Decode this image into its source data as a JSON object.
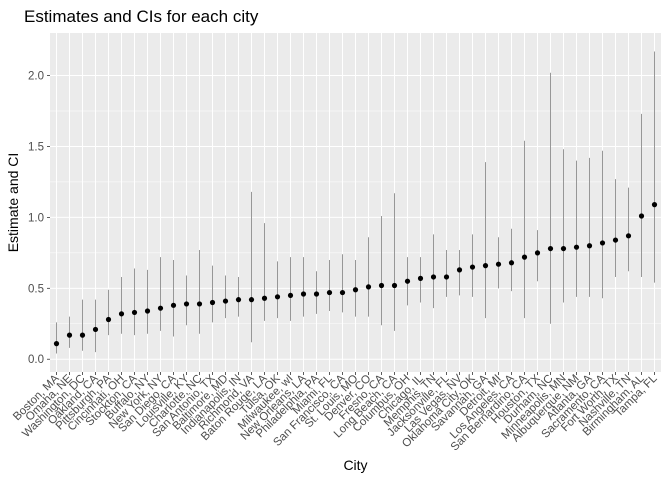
{
  "chart_data": {
    "type": "scatter",
    "title": "Estimates and CIs for each city",
    "xlabel": "City",
    "ylabel": "Estimate and CI",
    "ylim": [
      -0.09,
      2.3
    ],
    "yticks": [
      "0.0",
      "0.5",
      "1.0",
      "1.5",
      "2.0"
    ],
    "grid": true,
    "legend": "none",
    "colors": {
      "panel": "#ebebeb",
      "grid_major": "#ffffff",
      "point": "#000000",
      "errorbar": "#8c8c8c",
      "text": "#4d4d4d"
    },
    "categories": [
      "Boston, MA",
      "Omaha, NE",
      "Washington, DC",
      "Oakland, CA",
      "Pittsburgh, PA",
      "Cincinnati, OH",
      "Stockton, CA",
      "Buffalo, NY",
      "New York, NY",
      "San Diego, CA",
      "Louisville, KY",
      "Charlotte, NC",
      "San Antonio, TX",
      "Baltimore, MD",
      "Indianapolis, IN",
      "Richmond, VA",
      "Baton Rouge, LA",
      "Tulsa, OK",
      "Milwaukee, wI",
      "New Orleans, LA",
      "Philadelphia, PA",
      "Miami, FL",
      "San Francisco, CA",
      "St. Louis, MO",
      "Denver, CO",
      "Fresno, CA",
      "Long Beach, CA",
      "Columbus, OH",
      "Chicago, IL",
      "Memphis, TN",
      "Jacksonville, FL",
      "Las Vegas, NV",
      "Oklahoma City, OK",
      "Savannah, GA",
      "Detroit, MI",
      "Los Angeles, CA",
      "San Bernardino, CA",
      "Houston, TX",
      "Durham, NC",
      "Minneapolis, MN",
      "Albuquerque, NM",
      "Atlanta, GA",
      "Sacramento, CA",
      "Fort Worth, TX",
      "Nashville, TN",
      "Birmingham, AL",
      "Tampa, FL"
    ],
    "estimate": [
      0.11,
      0.17,
      0.17,
      0.21,
      0.28,
      0.32,
      0.33,
      0.34,
      0.36,
      0.38,
      0.39,
      0.39,
      0.4,
      0.41,
      0.42,
      0.42,
      0.43,
      0.44,
      0.45,
      0.46,
      0.46,
      0.47,
      0.47,
      0.49,
      0.51,
      0.52,
      0.52,
      0.55,
      0.57,
      0.58,
      0.58,
      0.63,
      0.65,
      0.66,
      0.67,
      0.68,
      0.72,
      0.75,
      0.78,
      0.78,
      0.79,
      0.8,
      0.82,
      0.84,
      0.87,
      1.01,
      1.09
    ],
    "ci_lower": [
      0.04,
      0.08,
      0.06,
      0.05,
      0.17,
      0.18,
      0.17,
      0.18,
      0.2,
      0.16,
      0.24,
      0.18,
      0.26,
      0.29,
      0.3,
      0.12,
      0.27,
      0.29,
      0.27,
      0.3,
      0.32,
      0.34,
      0.33,
      0.3,
      0.3,
      0.24,
      0.2,
      0.38,
      0.4,
      0.36,
      0.44,
      0.45,
      0.44,
      0.29,
      0.5,
      0.48,
      0.29,
      0.55,
      0.25,
      0.4,
      0.44,
      0.44,
      0.43,
      0.58,
      0.62,
      0.58,
      0.54
    ],
    "ci_upper": [
      0.26,
      0.3,
      0.42,
      0.42,
      0.49,
      0.58,
      0.64,
      0.63,
      0.72,
      0.7,
      0.59,
      0.77,
      0.66,
      0.59,
      0.58,
      1.18,
      0.96,
      0.69,
      0.72,
      0.72,
      0.62,
      0.7,
      0.74,
      0.7,
      0.86,
      1.01,
      1.17,
      0.72,
      0.72,
      0.88,
      0.77,
      0.77,
      0.88,
      1.39,
      0.86,
      0.92,
      1.54,
      0.91,
      2.02,
      1.48,
      1.4,
      1.42,
      1.47,
      1.27,
      1.21,
      1.73,
      2.17
    ]
  }
}
